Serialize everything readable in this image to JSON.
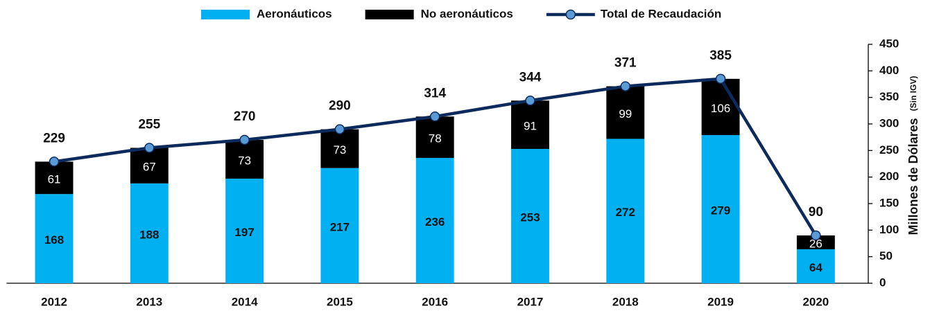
{
  "chart_data": {
    "type": "stacked-bar-line",
    "categories": [
      "2012",
      "2013",
      "2014",
      "2015",
      "2016",
      "2017",
      "2018",
      "2019",
      "2020"
    ],
    "series": [
      {
        "name": "Aeronáuticos",
        "color": "#00b0f0",
        "kind": "bar",
        "values": [
          168,
          188,
          197,
          217,
          236,
          253,
          272,
          279,
          64
        ]
      },
      {
        "name": "No aeronáuticos",
        "color": "#000000",
        "kind": "bar",
        "values": [
          61,
          67,
          73,
          73,
          78,
          91,
          99,
          106,
          26
        ]
      },
      {
        "name": "Total de Recaudación",
        "color": "#0d2a5c",
        "marker_color": "#5b9bd5",
        "kind": "line",
        "values": [
          229,
          255,
          270,
          290,
          314,
          344,
          371,
          385,
          90
        ]
      }
    ],
    "y_axis_label": "Millones de Dólares",
    "y_axis_sublabel": "(Sin IGV)",
    "ylim": [
      0,
      450
    ],
    "yticks": [
      0,
      50,
      100,
      150,
      200,
      250,
      300,
      350,
      400,
      450
    ],
    "legend": "top"
  }
}
